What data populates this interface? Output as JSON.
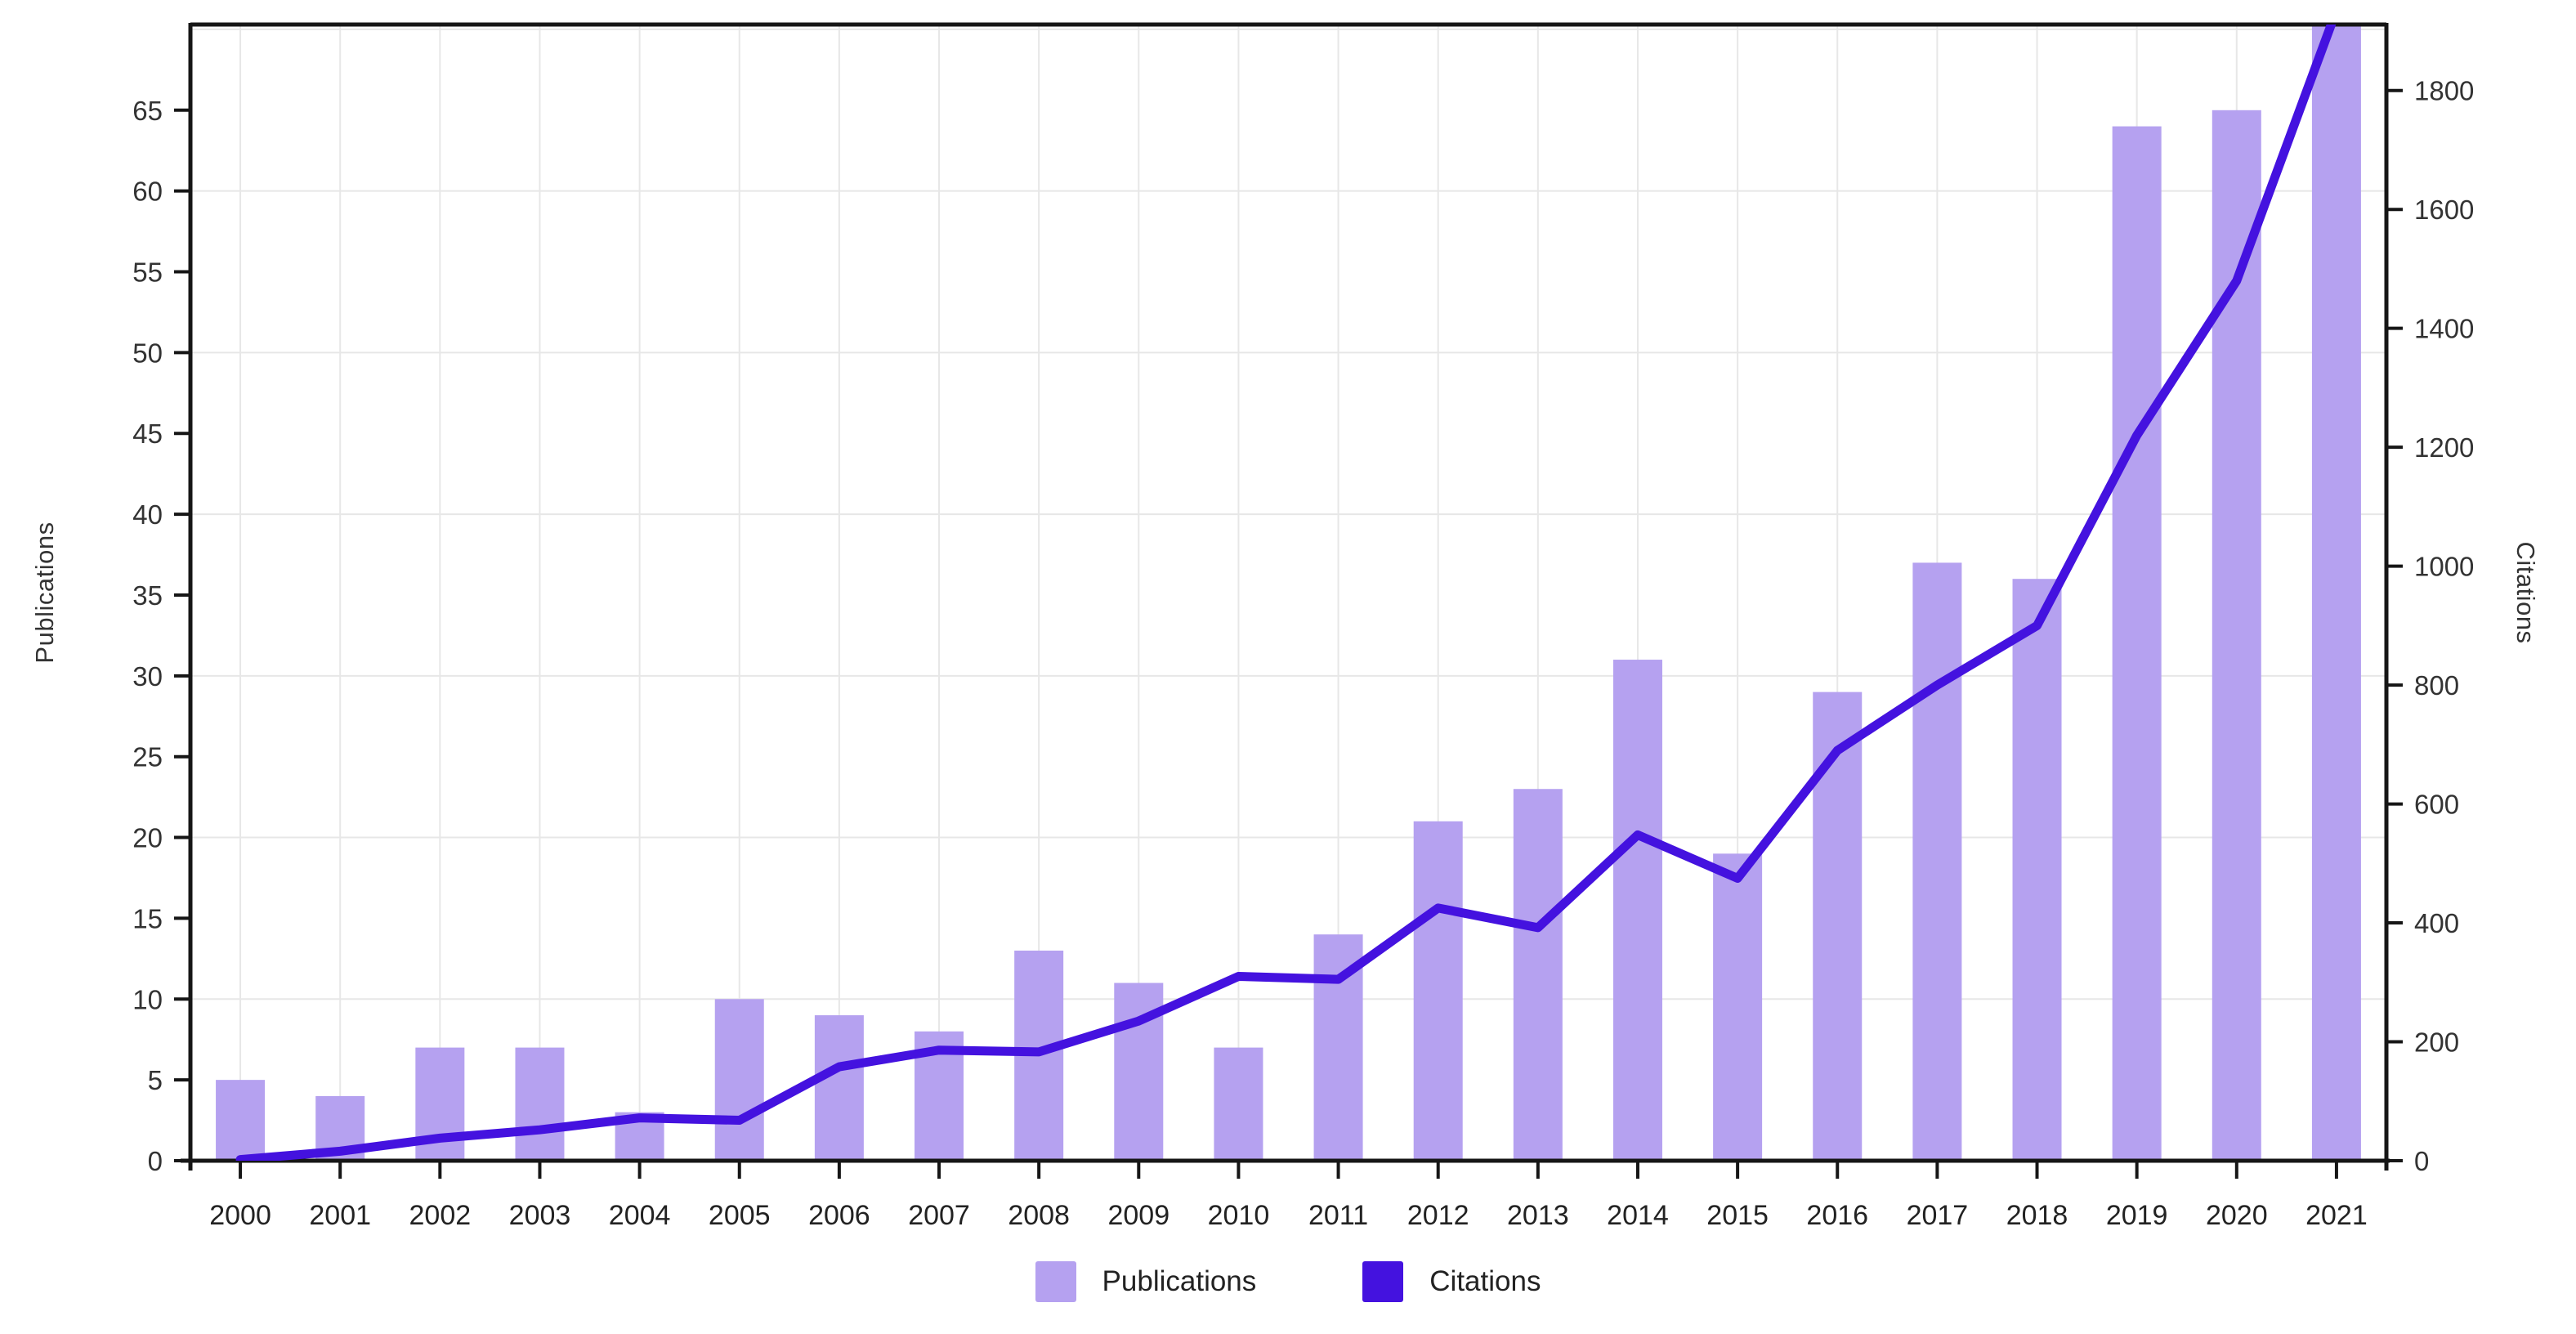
{
  "chart_data": {
    "type": "combo-bar-line",
    "title": "",
    "categories": [
      "2000",
      "2001",
      "2002",
      "2003",
      "2004",
      "2005",
      "2006",
      "2007",
      "2008",
      "2009",
      "2010",
      "2011",
      "2012",
      "2013",
      "2014",
      "2015",
      "2016",
      "2017",
      "2018",
      "2019",
      "2020",
      "2021"
    ],
    "series": [
      {
        "name": "Publications",
        "type": "bar",
        "axis": "left",
        "color": "#b5a1f0",
        "values": [
          5,
          4,
          7,
          7,
          3,
          10,
          9,
          8,
          13,
          11,
          7,
          14,
          21,
          23,
          31,
          19,
          29,
          37,
          36,
          64,
          65,
          75
        ]
      },
      {
        "name": "Citations",
        "type": "line",
        "axis": "right",
        "color": "#4412df",
        "values": [
          2,
          16,
          38,
          52,
          72,
          68,
          158,
          186,
          183,
          235,
          310,
          305,
          425,
          392,
          548,
          475,
          690,
          800,
          900,
          1220,
          1480,
          1935
        ]
      }
    ],
    "left_axis": {
      "label": "Publications",
      "ticks": [
        0,
        5,
        10,
        15,
        20,
        25,
        30,
        35,
        40,
        45,
        50,
        55,
        60,
        65
      ],
      "range": [
        0,
        70.3
      ]
    },
    "right_axis": {
      "label": "Citations",
      "ticks": [
        0,
        200,
        400,
        600,
        800,
        1000,
        1200,
        1400,
        1600,
        1800
      ],
      "range": [
        0,
        1911
      ]
    },
    "x_axis": {
      "ticks": [
        "2000",
        "2001",
        "2002",
        "2003",
        "2004",
        "2005",
        "2006",
        "2007",
        "2008",
        "2009",
        "2010",
        "2011",
        "2012",
        "2013",
        "2014",
        "2015",
        "2016",
        "2017",
        "2018",
        "2019",
        "2020",
        "2021"
      ]
    },
    "legend": {
      "position": "bottom",
      "items": [
        "Publications",
        "Citations"
      ]
    },
    "grid": {
      "vertical": "per-year",
      "horizontal_every_left_units": 10,
      "color": "#e7e7e7"
    },
    "axis_color": "#161616",
    "tick_text_color": "#333333",
    "note": "2021 bar and citations line exceed the axis maxima and are clipped at the top edge of the plot area."
  }
}
